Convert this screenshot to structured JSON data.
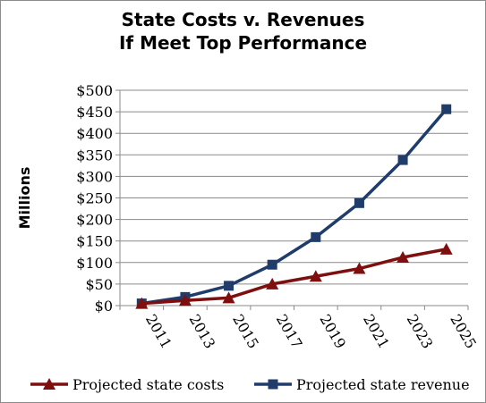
{
  "chart_data": {
    "type": "line",
    "title": "State Costs v. Revenues",
    "subtitle": "If Meet Top Performance",
    "ylabel": "Millions",
    "xlabel": "",
    "ylim": [
      0,
      500
    ],
    "y_ticks": [
      "$0",
      "$50",
      "$100",
      "$150",
      "$200",
      "$250",
      "$300",
      "$350",
      "$400",
      "$450",
      "$500"
    ],
    "categories": [
      "2011",
      "2013",
      "2015",
      "2017",
      "2019",
      "2021",
      "2023",
      "2025"
    ],
    "grid": true,
    "legend_position": "bottom",
    "series": [
      {
        "name": "Projected state costs",
        "color": "#7f0f0f",
        "marker": "triangle",
        "values": [
          5,
          12,
          18,
          50,
          68,
          86,
          112,
          131
        ]
      },
      {
        "name": "Projected state revenue",
        "color": "#1f3c6b",
        "marker": "square",
        "values": [
          5,
          20,
          46,
          95,
          159,
          238,
          338,
          456
        ]
      }
    ]
  }
}
